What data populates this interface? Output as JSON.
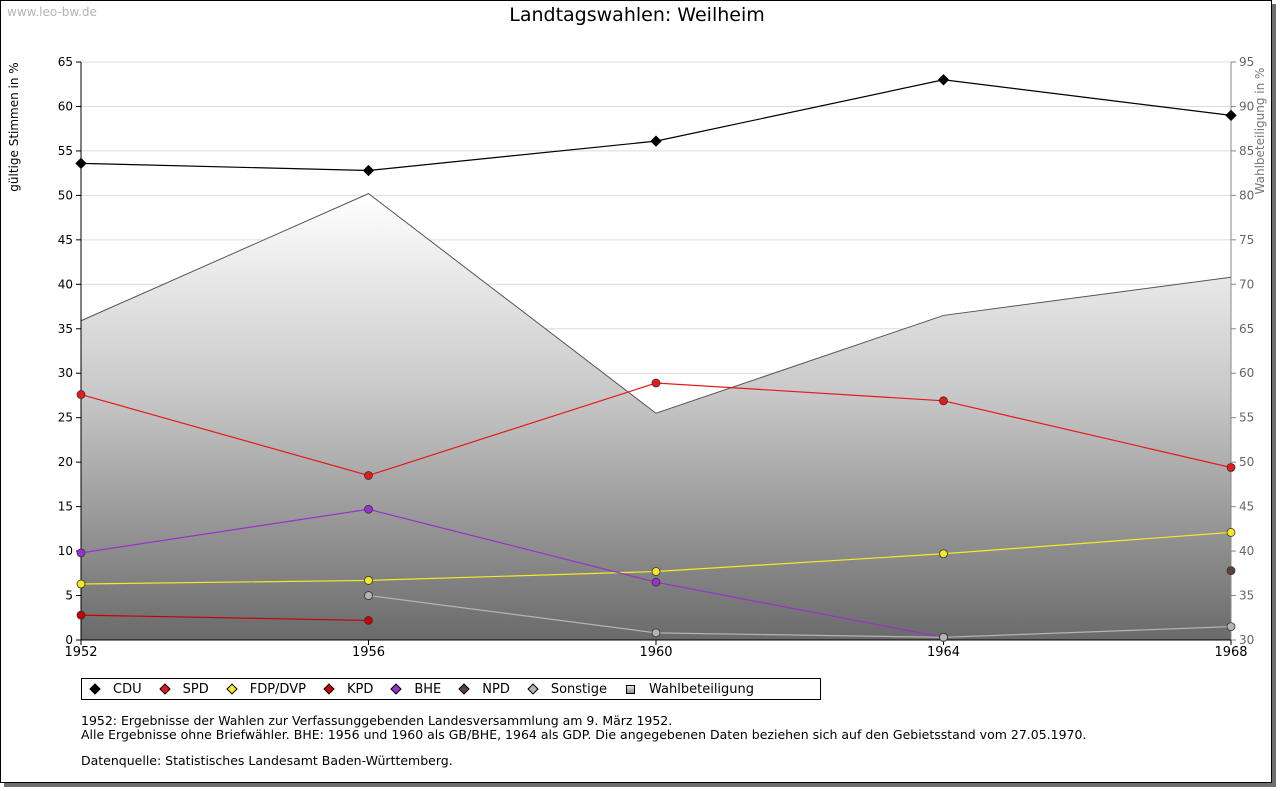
{
  "watermark": "www.leo-bw.de",
  "chart_data": {
    "type": "line",
    "title": "Landtagswahlen: Weilheim",
    "ylabel": "gültige Stimmen in %",
    "y2label": "Wahlbeteiligung in %",
    "xlabel": "",
    "x": [
      "1952",
      "1956",
      "1960",
      "1964",
      "1968"
    ],
    "ylim": [
      0,
      65
    ],
    "y2lim": [
      30,
      95
    ],
    "yticks": [
      0,
      5,
      10,
      15,
      20,
      25,
      30,
      35,
      40,
      45,
      50,
      55,
      60,
      65
    ],
    "y2ticks": [
      30,
      35,
      40,
      45,
      50,
      55,
      60,
      65,
      70,
      75,
      80,
      85,
      90,
      95
    ],
    "grid": true,
    "legend_position": "bottom",
    "area_series": {
      "name": "Wahlbeteiligung",
      "axis": "right",
      "values": [
        65.9,
        80.2,
        55.5,
        66.5,
        70.8
      ]
    },
    "series": [
      {
        "name": "CDU",
        "color": "#000000",
        "values": [
          53.6,
          52.8,
          56.1,
          63.0,
          59.0
        ]
      },
      {
        "name": "SPD",
        "color": "#e41a1c",
        "values": [
          27.6,
          18.5,
          28.9,
          26.9,
          19.4
        ]
      },
      {
        "name": "FDP/DVP",
        "color": "#f2ea27",
        "values": [
          6.3,
          6.7,
          7.7,
          9.7,
          12.1
        ]
      },
      {
        "name": "KPD",
        "color": "#c80000",
        "values": [
          2.8,
          2.2,
          null,
          null,
          null
        ]
      },
      {
        "name": "BHE",
        "color": "#9932cc",
        "values": [
          9.8,
          14.7,
          6.5,
          0.3,
          null
        ]
      },
      {
        "name": "NPD",
        "color": "#5c4033",
        "values": [
          null,
          null,
          null,
          null,
          7.8
        ]
      },
      {
        "name": "Sonstige",
        "color": "#b4b4b4",
        "values": [
          null,
          5.0,
          0.8,
          0.3,
          1.5
        ]
      }
    ]
  },
  "legend": [
    {
      "label": "CDU",
      "color": "#000000"
    },
    {
      "label": "SPD",
      "color": "#e41a1c"
    },
    {
      "label": "FDP/DVP",
      "color": "#f2ea27"
    },
    {
      "label": "KPD",
      "color": "#c80000"
    },
    {
      "label": "BHE",
      "color": "#9932cc"
    },
    {
      "label": "NPD",
      "color": "#5c4033"
    },
    {
      "label": "Sonstige",
      "color": "#b4b4b4"
    },
    {
      "label": "Wahlbeteiligung",
      "color": "#a0a0a0"
    }
  ],
  "notes": [
    "1952: Ergebnisse der Wahlen zur Verfassunggebenden Landesversammlung am 9. März 1952.",
    "Alle Ergebnisse ohne Briefwähler. BHE: 1956 und 1960 als GB/BHE, 1964 als GDP. Die angegebenen Daten beziehen sich auf den Gebietsstand vom 27.05.1970."
  ],
  "source": "Datenquelle: Statistisches Landesamt Baden-Württemberg."
}
